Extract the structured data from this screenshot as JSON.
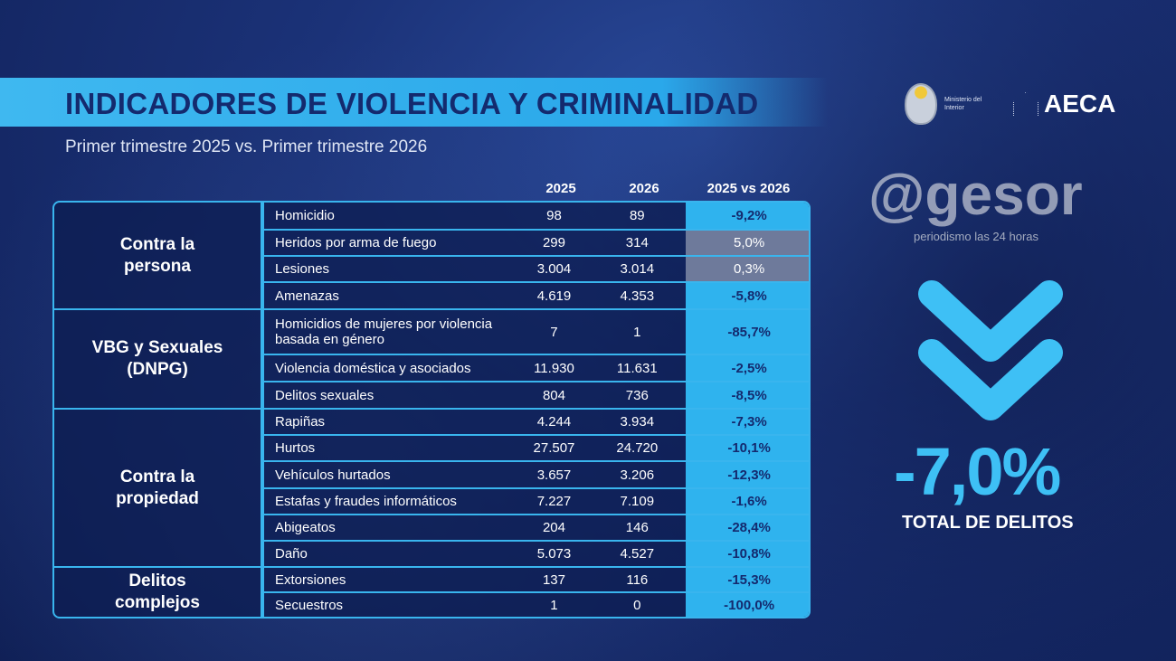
{
  "header": {
    "title": "INDICADORES DE VIOLENCIA Y CRIMINALIDAD",
    "subtitle": "Primer trimestre 2025 vs. Primer trimestre 2026"
  },
  "logos": {
    "ministry": "Ministerio del Interior",
    "aeca": "AECA"
  },
  "table": {
    "columns": [
      "2025",
      "2026",
      "2025 vs 2026"
    ],
    "categories": [
      "Contra la persona",
      "VBG y Sexuales (DNPG)",
      "Contra la propiedad",
      "Delitos complejos"
    ],
    "rows": [
      {
        "name": "Homicidio",
        "y2025": "98",
        "y2026": "89",
        "change": "-9,2%"
      },
      {
        "name": "Heridos por arma de fuego",
        "y2025": "299",
        "y2026": "314",
        "change": "5,0%"
      },
      {
        "name": "Lesiones",
        "y2025": "3.004",
        "y2026": "3.014",
        "change": "0,3%"
      },
      {
        "name": "Amenazas",
        "y2025": "4.619",
        "y2026": "4.353",
        "change": "-5,8%"
      },
      {
        "name": "Homicidios de mujeres por violencia basada en género",
        "y2025": "7",
        "y2026": "1",
        "change": "-85,7%"
      },
      {
        "name": "Violencia doméstica y asociados",
        "y2025": "11.930",
        "y2026": "11.631",
        "change": "-2,5%"
      },
      {
        "name": "Delitos sexuales",
        "y2025": "804",
        "y2026": "736",
        "change": "-8,5%"
      },
      {
        "name": "Rapiñas",
        "y2025": "4.244",
        "y2026": "3.934",
        "change": "-7,3%"
      },
      {
        "name": "Hurtos",
        "y2025": "27.507",
        "y2026": "24.720",
        "change": "-10,1%"
      },
      {
        "name": "Vehículos hurtados",
        "y2025": "3.657",
        "y2026": "3.206",
        "change": "-12,3%"
      },
      {
        "name": "Estafas y fraudes informáticos",
        "y2025": "7.227",
        "y2026": "7.109",
        "change": "-1,6%"
      },
      {
        "name": "Abigeatos",
        "y2025": "204",
        "y2026": "146",
        "change": "-28,4%"
      },
      {
        "name": "Daño",
        "y2025": "5.073",
        "y2026": "4.527",
        "change": "-10,8%"
      },
      {
        "name": "Extorsiones",
        "y2025": "137",
        "y2026": "116",
        "change": "-15,3%"
      },
      {
        "name": "Secuestros",
        "y2025": "1",
        "y2026": "0",
        "change": "-100,0%"
      }
    ],
    "highlight_color": "#6e7a9b",
    "accent": "#2fb3ee"
  },
  "summary": {
    "value": "-7,0%",
    "label": "TOTAL DE DELITOS",
    "icon": "double-chevron-down-icon"
  },
  "watermark": {
    "text": "@gesor",
    "tagline": "periodismo las 24 horas"
  }
}
